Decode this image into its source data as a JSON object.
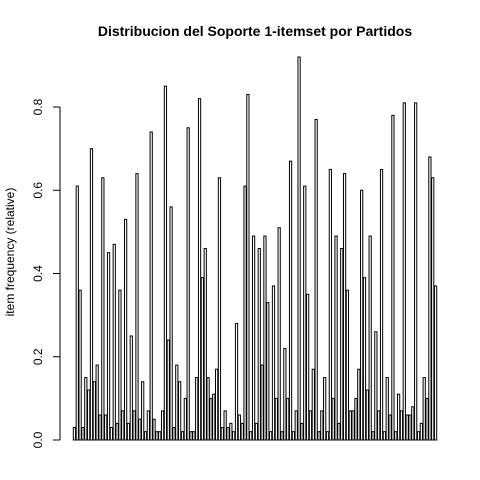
{
  "chart_data": {
    "type": "bar",
    "title": "Distribucion del Soporte 1-itemset por Partidos",
    "xlabel": "",
    "ylabel": "item frequency (relative)",
    "ylim": [
      0,
      0.92
    ],
    "yticks": [
      "0.0",
      "0.2",
      "0.4",
      "0.6",
      "0.8"
    ],
    "grid": false,
    "legend": "none",
    "bar_fill": "#ffffff",
    "bar_stroke": "#000000",
    "values": [
      0.03,
      0.61,
      0.36,
      0.03,
      0.15,
      0.12,
      0.7,
      0.14,
      0.18,
      0.06,
      0.63,
      0.06,
      0.45,
      0.03,
      0.47,
      0.04,
      0.36,
      0.07,
      0.53,
      0.04,
      0.25,
      0.07,
      0.64,
      0.05,
      0.14,
      0.02,
      0.07,
      0.74,
      0.05,
      0.02,
      0.02,
      0.07,
      0.85,
      0.24,
      0.56,
      0.03,
      0.18,
      0.14,
      0.02,
      0.1,
      0.75,
      0.02,
      0.02,
      0.15,
      0.82,
      0.39,
      0.46,
      0.15,
      0.1,
      0.11,
      0.17,
      0.63,
      0.03,
      0.07,
      0.03,
      0.04,
      0.02,
      0.28,
      0.06,
      0.04,
      0.61,
      0.83,
      0.02,
      0.49,
      0.04,
      0.46,
      0.18,
      0.49,
      0.33,
      0.02,
      0.37,
      0.1,
      0.51,
      0.02,
      0.22,
      0.1,
      0.67,
      0.02,
      0.07,
      0.92,
      0.04,
      0.61,
      0.35,
      0.07,
      0.17,
      0.77,
      0.02,
      0.07,
      0.15,
      0.02,
      0.65,
      0.1,
      0.49,
      0.04,
      0.46,
      0.64,
      0.36,
      0.07,
      0.07,
      0.1,
      0.17,
      0.6,
      0.39,
      0.12,
      0.49,
      0.02,
      0.26,
      0.07,
      0.65,
      0.02,
      0.15,
      0.06,
      0.78,
      0.02,
      0.11,
      0.07,
      0.81,
      0.06,
      0.06,
      0.08,
      0.81,
      0.02,
      0.04,
      0.15,
      0.1,
      0.68,
      0.63,
      0.37
    ]
  }
}
